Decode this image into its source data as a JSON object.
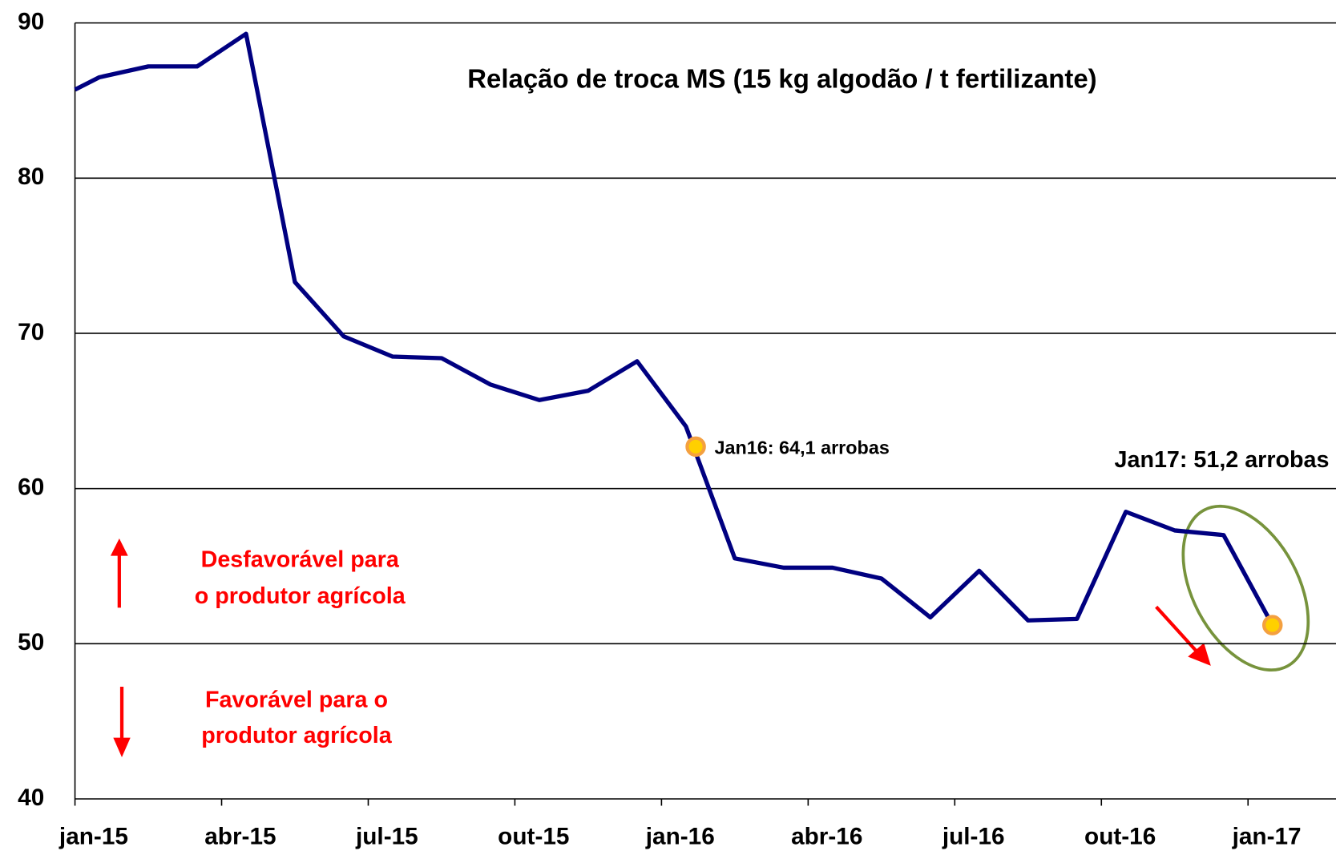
{
  "chart_data": {
    "type": "line",
    "title": "Relação de troca MS (15 kg algodão / t fertilizante)",
    "xlim": [
      0,
      25.8
    ],
    "xticks": [
      {
        "value": 0,
        "label": "jan-15"
      },
      {
        "value": 3,
        "label": "abr-15"
      },
      {
        "value": 6,
        "label": "jul-15"
      },
      {
        "value": 9,
        "label": "out-15"
      },
      {
        "value": 12,
        "label": "jan-16"
      },
      {
        "value": 15,
        "label": "abr-16"
      },
      {
        "value": 18,
        "label": "jul-16"
      },
      {
        "value": 21,
        "label": "out-16"
      },
      {
        "value": 24,
        "label": "jan-17"
      }
    ],
    "ylim": [
      40,
      90
    ],
    "yticks": [
      40,
      50,
      60,
      70,
      80,
      90
    ],
    "grid": true,
    "x": [
      0,
      0.5,
      1.5,
      2.5,
      3.5,
      4.5,
      5.5,
      6.5,
      7.5,
      8.5,
      9.5,
      10.5,
      11.5,
      12.5,
      13.5,
      14.5,
      15.5,
      16.5,
      17.5,
      18.5,
      19.5,
      20.5,
      21.5,
      22.5,
      23.5,
      24.5
    ],
    "series": [
      {
        "color": "#000080",
        "values": [
          85.7,
          86.5,
          87.2,
          87.2,
          89.3,
          73.3,
          69.8,
          68.5,
          68.4,
          66.7,
          65.7,
          66.3,
          68.2,
          64.0,
          55.5,
          54.9,
          54.9,
          54.2,
          51.7,
          54.7,
          51.5,
          51.6,
          58.5,
          57.3,
          57.0,
          51.2
        ]
      }
    ],
    "highlights": [
      {
        "x": 12.7,
        "y": 62.7,
        "label": "Jan16: 64,1 arrobas"
      },
      {
        "x": 24.5,
        "y": 51.2,
        "label": "Jan17: 51,2 arrobas"
      }
    ],
    "annotations": [
      "Desfavorável para",
      "o produtor agrícola",
      "Favorável para o",
      "produtor agrícola"
    ]
  }
}
